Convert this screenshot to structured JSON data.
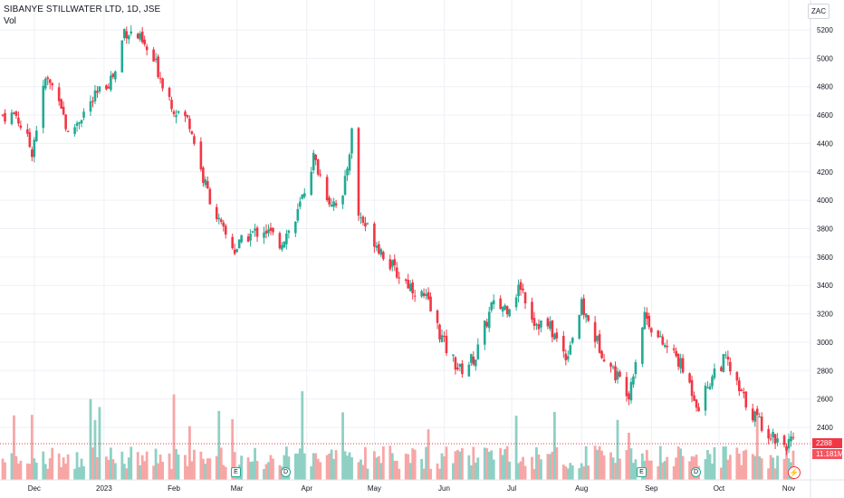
{
  "header": {
    "symbol_title": "SIBANYE STILLWATER LTD, 1D, JSE",
    "volume_label": "Vol"
  },
  "currency": "ZAC",
  "last_price_label": "2288",
  "last_volume_label": "11.181M",
  "events": [
    {
      "symbol": "E",
      "kind": "earnings",
      "date": "2023-03-01"
    },
    {
      "symbol": "D",
      "kind": "dividend",
      "date": "2023-03-20"
    },
    {
      "symbol": "E",
      "kind": "earnings",
      "date": "2023-08-31"
    },
    {
      "symbol": "D",
      "kind": "dividend",
      "date": "2023-09-18"
    }
  ],
  "colors": {
    "up": "#22ab94",
    "down": "#f23645",
    "up_volume": "#8ed0c4",
    "down_volume": "#f7a6a6",
    "grid": "#edf0f5",
    "axis_text": "#131722"
  },
  "chart_data": {
    "type": "candlestick",
    "title": "SIBANYE STILLWATER LTD, 1D, JSE",
    "currency": "ZAC",
    "y_axis": {
      "ticks": [
        2400,
        2600,
        2800,
        3000,
        3200,
        3400,
        3600,
        3800,
        4000,
        4200,
        4400,
        4600,
        4800,
        5000,
        5200
      ],
      "range": [
        2270,
        5310
      ]
    },
    "x_axis": {
      "tick_labels": [
        "Dec",
        "2023",
        "Feb",
        "Mar",
        "Apr",
        "May",
        "Jun",
        "Jul",
        "Aug",
        "Sep",
        "Oct",
        "Nov"
      ]
    },
    "grid": true,
    "last_price": 2288,
    "last_volume": "11.181M",
    "series": [
      {
        "name": "Price",
        "close_path": [
          [
            "2022-11-23",
            4600
          ],
          [
            "2022-11-30",
            4350
          ],
          [
            "2022-12-06",
            4850
          ],
          [
            "2022-12-12",
            4750
          ],
          [
            "2022-12-16",
            4450
          ],
          [
            "2022-12-22",
            4600
          ],
          [
            "2023-01-06",
            4900
          ],
          [
            "2023-01-10",
            5200
          ],
          [
            "2023-01-16",
            5150
          ],
          [
            "2023-01-24",
            4950
          ],
          [
            "2023-02-01",
            4650
          ],
          [
            "2023-02-08",
            4550
          ],
          [
            "2023-02-14",
            4150
          ],
          [
            "2023-02-22",
            3800
          ],
          [
            "2023-02-28",
            3650
          ],
          [
            "2023-03-06",
            3750
          ],
          [
            "2023-03-13",
            3800
          ],
          [
            "2023-03-20",
            3700
          ],
          [
            "2023-03-27",
            3850
          ],
          [
            "2023-04-04",
            4300
          ],
          [
            "2023-04-11",
            4000
          ],
          [
            "2023-04-17",
            4000
          ],
          [
            "2023-04-21",
            4480
          ],
          [
            "2023-04-24",
            3900
          ],
          [
            "2023-05-02",
            3700
          ],
          [
            "2023-05-10",
            3500
          ],
          [
            "2023-05-17",
            3400
          ],
          [
            "2023-05-24",
            3300
          ],
          [
            "2023-06-02",
            2950
          ],
          [
            "2023-06-08",
            2800
          ],
          [
            "2023-06-15",
            2900
          ],
          [
            "2023-06-22",
            3250
          ],
          [
            "2023-06-29",
            3250
          ],
          [
            "2023-07-05",
            3400
          ],
          [
            "2023-07-11",
            3150
          ],
          [
            "2023-07-18",
            3100
          ],
          [
            "2023-07-25",
            2900
          ],
          [
            "2023-08-01",
            3250
          ],
          [
            "2023-08-08",
            3000
          ],
          [
            "2023-08-15",
            2800
          ],
          [
            "2023-08-22",
            2650
          ],
          [
            "2023-08-29",
            3200
          ],
          [
            "2023-09-05",
            3000
          ],
          [
            "2023-09-12",
            2900
          ],
          [
            "2023-09-18",
            2700
          ],
          [
            "2023-09-22",
            2550
          ],
          [
            "2023-09-29",
            2800
          ],
          [
            "2023-10-04",
            2880
          ],
          [
            "2023-10-10",
            2650
          ],
          [
            "2023-10-16",
            2500
          ],
          [
            "2023-10-24",
            2350
          ],
          [
            "2023-10-30",
            2288
          ]
        ]
      },
      {
        "name": "Vol",
        "unit": "shares",
        "approx_typical": "7M",
        "max_approx": "28M"
      }
    ]
  }
}
